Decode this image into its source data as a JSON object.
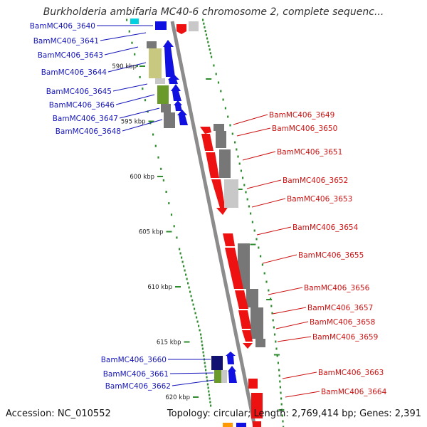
{
  "title": "Burkholderia ambifaria MC40-6 chromosome 2, complete sequenc...",
  "footer": {
    "accession": "Accession: NC_010552",
    "topology": "Topology: circular; Length: 2,769,414 bp; Genes: 2,391"
  },
  "scale_labels": [
    {
      "label": "590 kbp",
      "kbp": 590
    },
    {
      "label": "595 kbp",
      "kbp": 595
    },
    {
      "label": "600 kbp",
      "kbp": 600
    },
    {
      "label": "605 kbp",
      "kbp": 605
    },
    {
      "label": "610 kbp",
      "kbp": 610
    },
    {
      "label": "615 kbp",
      "kbp": 615
    },
    {
      "label": "620 kbp",
      "kbp": 620
    }
  ],
  "left_genes": [
    "BamMC406_3640",
    "BamMC406_3641",
    "BamMC406_3643",
    "BamMC406_3644",
    "BamMC406_3645",
    "BamMC406_3646",
    "BamMC406_3647",
    "BamMC406_3648",
    "BamMC406_3660",
    "BamMC406_3661",
    "BamMC406_3662"
  ],
  "right_genes": [
    "BamMC406_3649",
    "BamMC406_3650",
    "BamMC406_3651",
    "BamMC406_3652",
    "BamMC406_3653",
    "BamMC406_3654",
    "BamMC406_3655",
    "BamMC406_3656",
    "BamMC406_3657",
    "BamMC406_3658",
    "BamMC406_3659",
    "BamMC406_3663",
    "BamMC406_3664"
  ],
  "colors": {
    "backbone": "#8c8c8c",
    "scale": "#2e8b2e",
    "plus_strand_gene": "#1010e0",
    "minus_strand_gene": "#ee1111",
    "cog_gray": "#777777",
    "cog_light_gray": "#c8c8c8",
    "cog_olive": "#c8c880",
    "cog_green": "#6a9a2a",
    "cog_navy": "#101070",
    "cog_cyan": "#00d0e0",
    "cog_orange": "#ff9900"
  }
}
